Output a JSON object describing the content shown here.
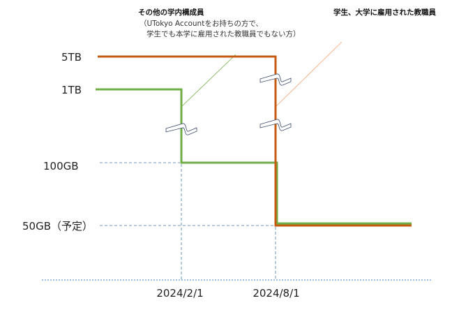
{
  "y_labels": {
    "five_tb": "5TB",
    "one_tb": "1TB",
    "hundred_gb": "100GB",
    "fifty_gb": "50GB（予定）"
  },
  "x_labels": {
    "feb": "2024/2/1",
    "aug": "2024/8/1"
  },
  "annotations": {
    "others_title": "その他の学内構成員",
    "others_line1": "（UTokyo Accountをお持ちの方で、",
    "others_line2": "学生でも本学に雇用された教職員でもない方）",
    "students_staff": "学生、大学に雇用された教職員"
  },
  "series": [
    {
      "label_ref": "students_staff",
      "color": "#c55a11",
      "steps": [
        "5TB",
        "5TB→50GB at 2024/8/1"
      ]
    },
    {
      "label_ref": "others",
      "color": "#70ad47",
      "steps": [
        "1TB",
        "100GB at 2024/2/1",
        "50GB at 2024/8/1"
      ]
    }
  ],
  "colors": {
    "guide": "#4a76a8",
    "orange": "#c55a11",
    "green": "#70ad47"
  }
}
